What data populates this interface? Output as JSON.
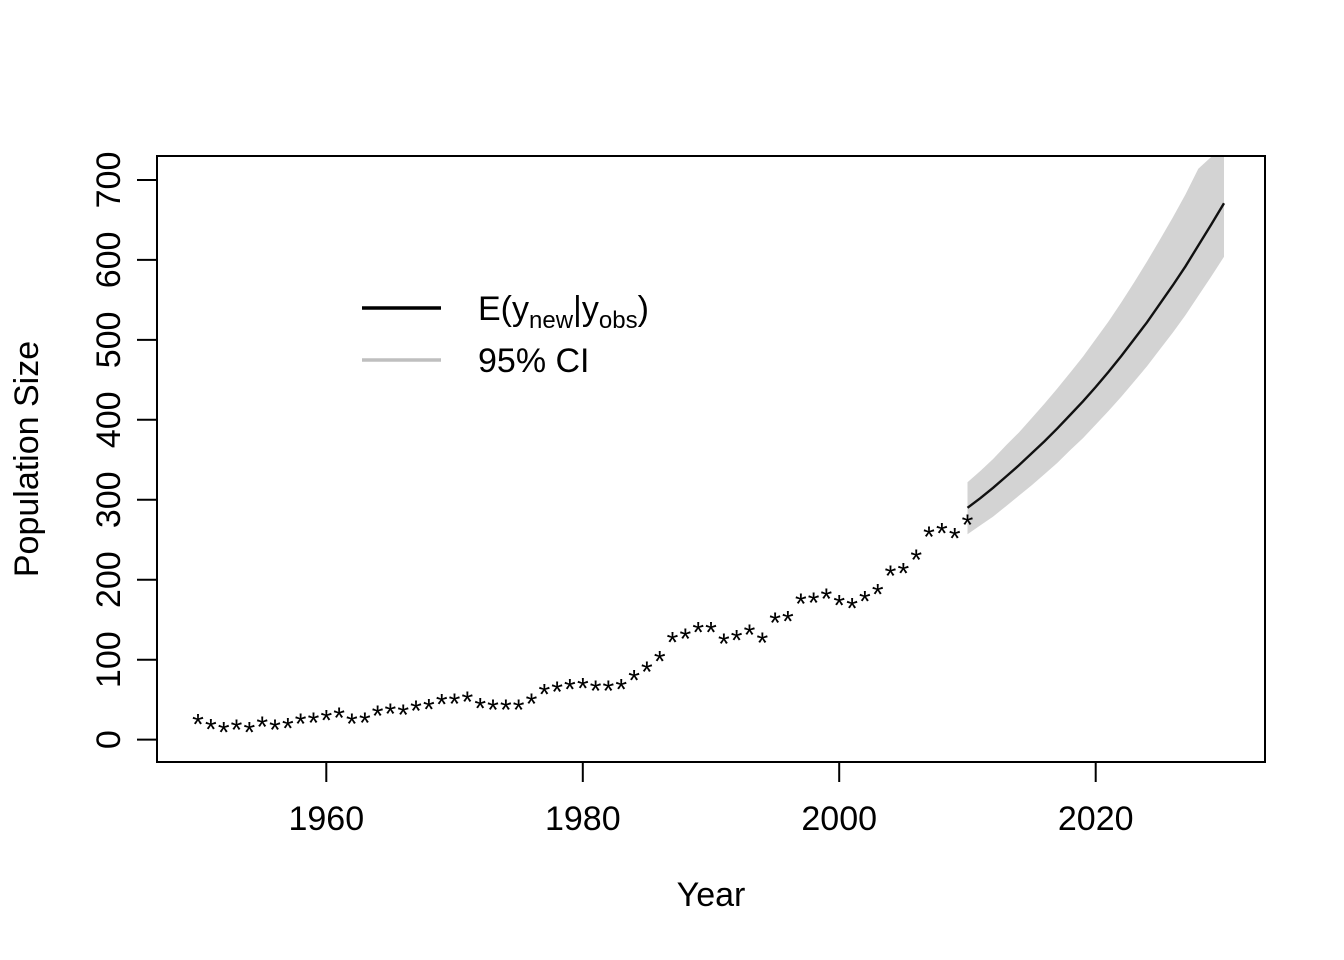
{
  "figure": {
    "background_color": "#ffffff",
    "text_color": "#000000"
  },
  "chart_data": {
    "type": "line",
    "title": "",
    "xlabel": "Year",
    "ylabel": "Population Size",
    "x_ticks": [
      1960,
      1980,
      2000,
      2020
    ],
    "y_ticks": [
      0,
      100,
      200,
      300,
      400,
      500,
      600,
      700
    ],
    "x_axis_range": [
      1946.8,
      2033.2
    ],
    "y_axis_range": [
      -28,
      730
    ],
    "xlim": [
      1950,
      2030
    ],
    "ylim": [
      0,
      702
    ],
    "grid": false,
    "legend": {
      "position": "inside-top-left",
      "entries": [
        {
          "label": "E(y_new|y_obs)",
          "label_parts": [
            {
              "text": "E(y",
              "sub": false
            },
            {
              "text": "new",
              "sub": true
            },
            {
              "text": "|y",
              "sub": false
            },
            {
              "text": "obs",
              "sub": true
            },
            {
              "text": ")",
              "sub": false
            }
          ],
          "line_color": "#000000",
          "type": "line"
        },
        {
          "label": "95% CI",
          "line_color": "#bfbfbf",
          "type": "line"
        }
      ]
    },
    "series": [
      {
        "name": "observed-counts",
        "type": "scatter",
        "marker": "*",
        "color": "#000000",
        "x_start": 1950,
        "x_end": 2010,
        "x_step": 1,
        "values": [
          31,
          25,
          21,
          24,
          21,
          28,
          24,
          26,
          32,
          33,
          36,
          39,
          32,
          33,
          42,
          44,
          43,
          48,
          50,
          56,
          57,
          59,
          51,
          49,
          49,
          49,
          57,
          69,
          72,
          75,
          76,
          73,
          73,
          75,
          86,
          97,
          110,
          134,
          138,
          146,
          146,
          132,
          136,
          143,
          133,
          158,
          160,
          182,
          183,
          188,
          180,
          176,
          185,
          194,
          217,
          220,
          237,
          266,
          270,
          264,
          281
        ]
      },
      {
        "name": "forecast-mean",
        "type": "line",
        "color": "#111111",
        "x": [
          2010,
          2011,
          2012,
          2013,
          2014,
          2015,
          2016,
          2017,
          2018,
          2019,
          2020,
          2021,
          2022,
          2023,
          2024,
          2025,
          2026,
          2027,
          2028,
          2029,
          2030
        ],
        "values": [
          290,
          302,
          315,
          329,
          343,
          358,
          373,
          389,
          406,
          423,
          441,
          460,
          480,
          501,
          522,
          545,
          568,
          592,
          618,
          644,
          671
        ]
      },
      {
        "name": "forecast-95ci-band",
        "type": "area",
        "color": "#d3d3d3",
        "ci_level": "95%",
        "x": [
          2010,
          2011,
          2012,
          2013,
          2014,
          2015,
          2016,
          2017,
          2018,
          2019,
          2020,
          2021,
          2022,
          2023,
          2024,
          2025,
          2026,
          2027,
          2028,
          2029,
          2030
        ],
        "lower": [
          257,
          268,
          279,
          292,
          305,
          318,
          332,
          346,
          362,
          377,
          394,
          411,
          429,
          448,
          467,
          488,
          509,
          531,
          555,
          579,
          604
        ],
        "upper": [
          322,
          336,
          351,
          368,
          384,
          402,
          420,
          439,
          459,
          479,
          501,
          523,
          547,
          572,
          598,
          625,
          653,
          682,
          714,
          745,
          778
        ]
      }
    ]
  }
}
